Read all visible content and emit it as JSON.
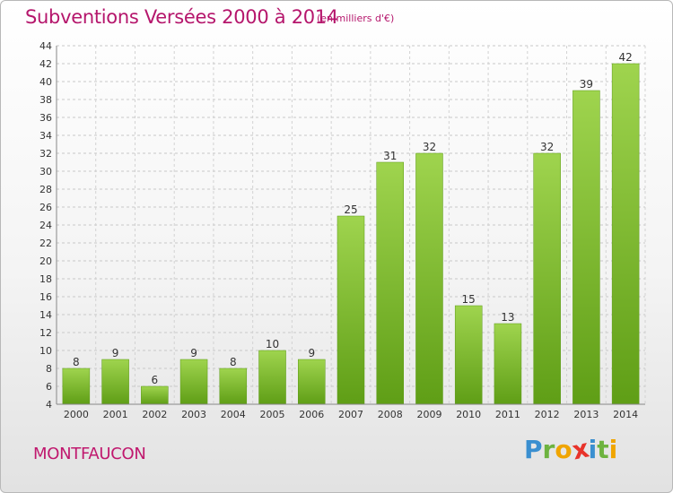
{
  "header": {
    "title": "Subventions Versées 2000 à 2014",
    "subtitle": "(en milliers d'€)"
  },
  "footer": {
    "commune": "MONTFAUCON",
    "logo_letters": [
      "P",
      "r",
      "o",
      "x",
      "i",
      "t",
      "i"
    ],
    "logo_colors": [
      "#3a8fd0",
      "#6db33f",
      "#f0a500",
      "#e8332a",
      "#3a8fd0",
      "#6db33f",
      "#f0a500"
    ]
  },
  "chart_data": {
    "type": "bar",
    "title": "Subventions Versées 2000 à 2014",
    "subtitle": "(en milliers d'€)",
    "categories": [
      "2000",
      "2001",
      "2002",
      "2003",
      "2004",
      "2005",
      "2006",
      "2007",
      "2008",
      "2009",
      "2010",
      "2011",
      "2012",
      "2013",
      "2014"
    ],
    "values": [
      8,
      9,
      6,
      9,
      8,
      10,
      9,
      25,
      31,
      32,
      15,
      13,
      32,
      39,
      42
    ],
    "ylim": [
      4,
      44
    ],
    "ytick_step": 2,
    "grid": true,
    "bar_color": "#7dbb2e"
  }
}
